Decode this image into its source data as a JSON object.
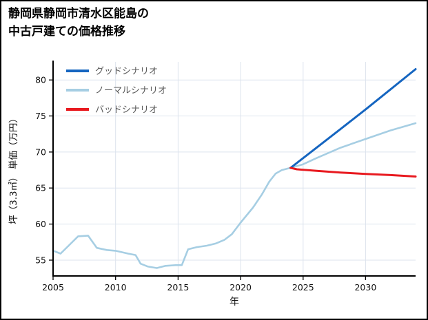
{
  "title": {
    "line1": "静岡県静岡市清水区能島の",
    "line2": "中古戸建ての価格推移"
  },
  "chart_data": {
    "type": "line",
    "title": "静岡県静岡市清水区能島の中古戸建ての価格推移",
    "xlabel": "年",
    "ylabel": "坪（3.3㎡） 単価（万円）",
    "x_range": [
      2005,
      2034
    ],
    "y_range": [
      52.8,
      82.5
    ],
    "x_ticks": [
      2005,
      2010,
      2015,
      2020,
      2025,
      2030
    ],
    "y_ticks": [
      55,
      60,
      65,
      70,
      75,
      80
    ],
    "grid": true,
    "grid_color": "#dce3ed",
    "axis_color": "#000000",
    "tick_label_color": "#111111",
    "legend_position": "upper left",
    "legend_text_color": "#595959",
    "legend": [
      {
        "id": "good",
        "label": "グッドシナリオ",
        "color": "#1565c0"
      },
      {
        "id": "normal",
        "label": "ノーマルシナリオ",
        "color": "#a6cee3"
      },
      {
        "id": "bad",
        "label": "バッドシナリオ",
        "color": "#e8191f"
      }
    ],
    "series": [
      {
        "id": "normal",
        "name": "ノーマルシナリオ",
        "color": "#a6cee3",
        "width": 2.6,
        "points": [
          [
            2005,
            56.3
          ],
          [
            2005.6,
            55.9
          ],
          [
            2006.3,
            57.1
          ],
          [
            2007,
            58.3
          ],
          [
            2007.8,
            58.4
          ],
          [
            2008.5,
            56.7
          ],
          [
            2009.3,
            56.4
          ],
          [
            2010,
            56.3
          ],
          [
            2011,
            55.9
          ],
          [
            2011.6,
            55.7
          ],
          [
            2012,
            54.5
          ],
          [
            2012.6,
            54.1
          ],
          [
            2013.3,
            53.9
          ],
          [
            2014,
            54.2
          ],
          [
            2014.8,
            54.3
          ],
          [
            2015.3,
            54.3
          ],
          [
            2015.8,
            56.5
          ],
          [
            2016.5,
            56.8
          ],
          [
            2017.3,
            57.0
          ],
          [
            2018,
            57.3
          ],
          [
            2018.7,
            57.8
          ],
          [
            2019.3,
            58.6
          ],
          [
            2020,
            60.2
          ],
          [
            2021,
            62.3
          ],
          [
            2021.7,
            64.1
          ],
          [
            2022.3,
            65.9
          ],
          [
            2022.8,
            67.0
          ],
          [
            2023.3,
            67.5
          ],
          [
            2024,
            67.8
          ],
          [
            2025,
            68.3
          ],
          [
            2026,
            69.1
          ],
          [
            2028,
            70.6
          ],
          [
            2030,
            71.8
          ],
          [
            2032,
            73.0
          ],
          [
            2034,
            74.0
          ]
        ]
      },
      {
        "id": "good",
        "name": "グッドシナリオ",
        "color": "#1565c0",
        "width": 3,
        "points": [
          [
            2024,
            67.8
          ],
          [
            2026,
            70.5
          ],
          [
            2028,
            73.2
          ],
          [
            2030,
            75.9
          ],
          [
            2032,
            78.7
          ],
          [
            2034,
            81.5
          ]
        ]
      },
      {
        "id": "bad",
        "name": "バッドシナリオ",
        "color": "#e8191f",
        "width": 3,
        "points": [
          [
            2024,
            67.8
          ],
          [
            2024.5,
            67.6
          ],
          [
            2026,
            67.4
          ],
          [
            2028,
            67.15
          ],
          [
            2030,
            66.95
          ],
          [
            2032,
            66.8
          ],
          [
            2034,
            66.6
          ]
        ]
      }
    ]
  }
}
